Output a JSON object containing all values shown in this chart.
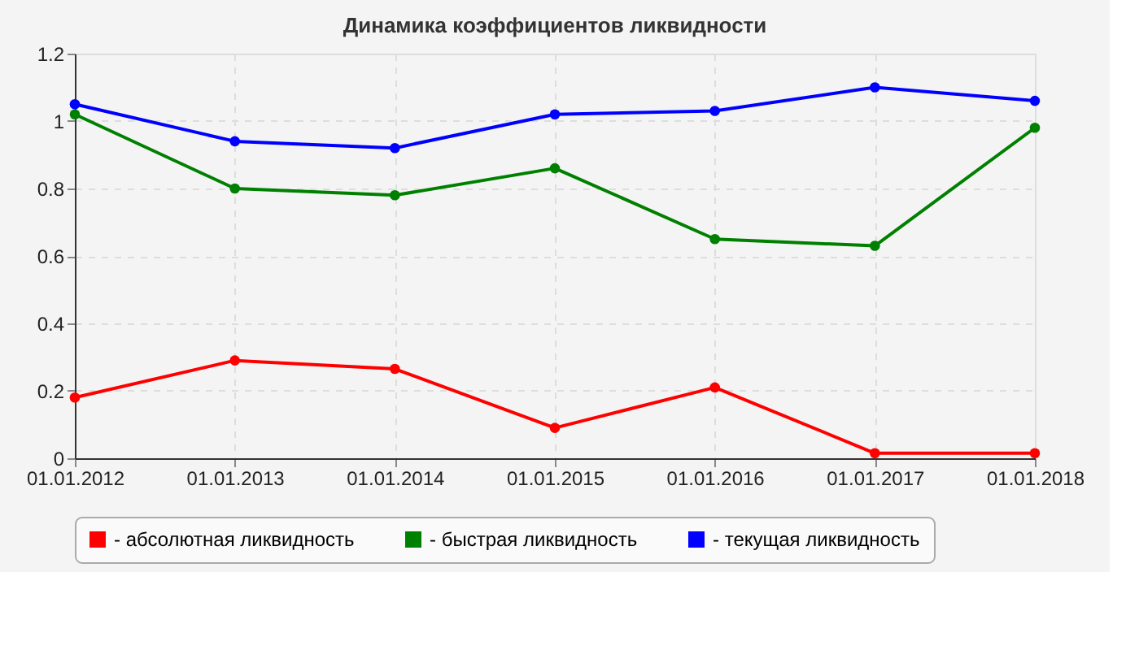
{
  "chart_data": {
    "type": "line",
    "title": "Динамика коэффициентов ликвидности",
    "categories": [
      "01.01.2012",
      "01.01.2013",
      "01.01.2014",
      "01.01.2015",
      "01.01.2016",
      "01.01.2017",
      "01.01.2018"
    ],
    "series": [
      {
        "name": "- абсолютная ликвидность",
        "color": "#ff0000",
        "values": [
          0.18,
          0.29,
          0.265,
          0.09,
          0.21,
          0.015,
          0.015
        ]
      },
      {
        "name": "- быстрая ликвидность",
        "color": "#008000",
        "values": [
          1.02,
          0.8,
          0.78,
          0.86,
          0.65,
          0.63,
          0.98
        ]
      },
      {
        "name": "- текущая ликвидность",
        "color": "#0000ff",
        "values": [
          1.05,
          0.94,
          0.92,
          1.02,
          1.03,
          1.1,
          1.06
        ]
      }
    ],
    "ylim": [
      0,
      1.2
    ],
    "yticks": [
      0,
      0.2,
      0.4,
      0.6,
      0.8,
      1,
      1.2
    ],
    "grid": true,
    "legend": "bottom",
    "marker": "circle",
    "line_style": "solid"
  }
}
